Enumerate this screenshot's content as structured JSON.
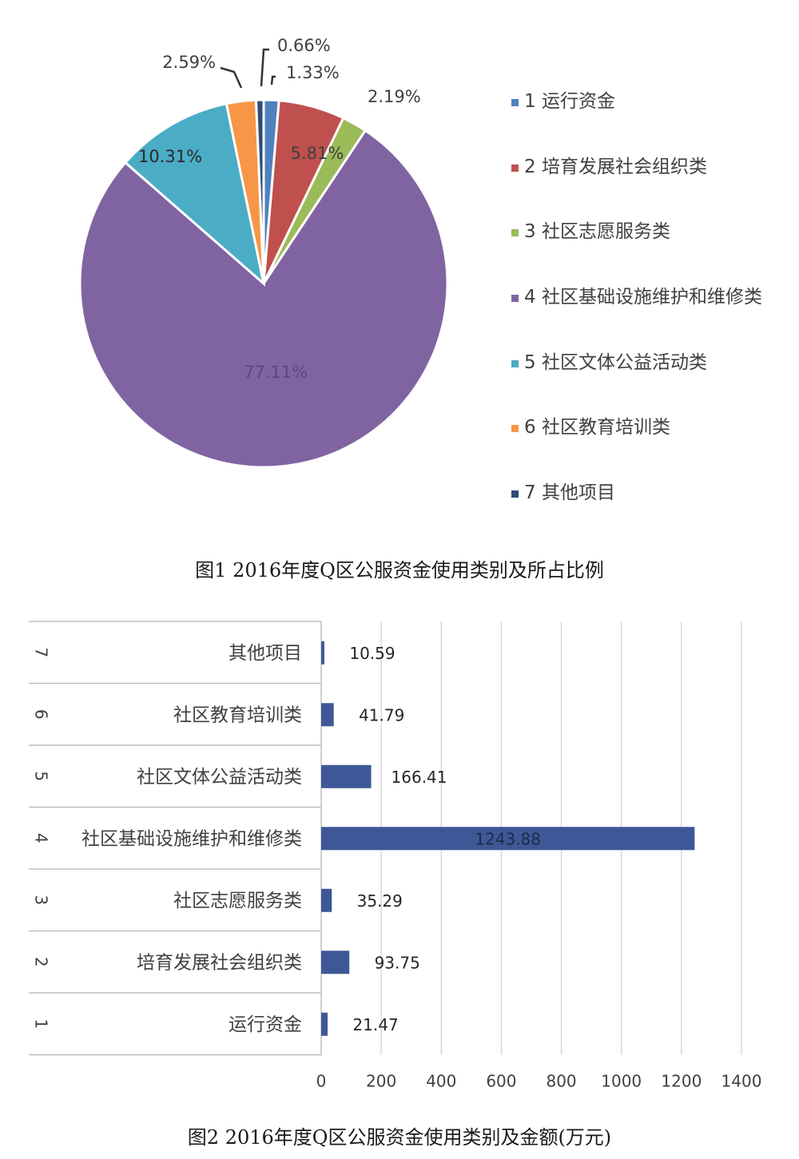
{
  "chart_data": [
    {
      "type": "pie",
      "title": "",
      "caption": "图1  2016年度Q区公服资金使用类别及所占比例",
      "legend_position": "right",
      "slices": [
        {
          "label": "1 运行资金",
          "value": 1.33,
          "value_label": "1.33%",
          "color": "#4f81bd"
        },
        {
          "label": "2 培育发展社会组织类",
          "value": 5.81,
          "value_label": "5.81%",
          "color": "#c0504d"
        },
        {
          "label": "3 社区志愿服务类",
          "value": 2.19,
          "value_label": "2.19%",
          "color": "#9bbb59"
        },
        {
          "label": "4 社区基础设施维护和维修类",
          "value": 77.11,
          "value_label": "77.11%",
          "color": "#8064a2"
        },
        {
          "label": "5 社区文体公益活动类",
          "value": 10.31,
          "value_label": "10.31%",
          "color": "#4bacc6"
        },
        {
          "label": "6 社区教育培训类",
          "value": 2.59,
          "value_label": "2.59%",
          "color": "#f79646"
        },
        {
          "label": "7 其他项目",
          "value": 0.66,
          "value_label": "0.66%",
          "color": "#2c4d75"
        }
      ]
    },
    {
      "type": "bar",
      "orientation": "horizontal",
      "title": "",
      "caption": "图2  2016年度Q区公服资金使用类别及金额(万元)",
      "unit": "万元",
      "xlim": [
        0,
        1400
      ],
      "xticks": [
        0,
        200,
        400,
        600,
        800,
        1000,
        1200,
        1400
      ],
      "grid": true,
      "bar_color": "#3e5897",
      "categories": [
        {
          "index": "1",
          "label": "运行资金",
          "value": 21.47,
          "value_label": "21.47"
        },
        {
          "index": "2",
          "label": "培育发展社会组织类",
          "value": 93.75,
          "value_label": "93.75"
        },
        {
          "index": "3",
          "label": "社区志愿服务类",
          "value": 35.29,
          "value_label": "35.29"
        },
        {
          "index": "4",
          "label": "社区基础设施维护和维修类",
          "value": 1243.88,
          "value_label": "1243.88"
        },
        {
          "index": "5",
          "label": "社区文体公益活动类",
          "value": 166.41,
          "value_label": "166.41"
        },
        {
          "index": "6",
          "label": "社区教育培训类",
          "value": 41.79,
          "value_label": "41.79"
        },
        {
          "index": "7",
          "label": "其他项目",
          "value": 10.59,
          "value_label": "10.59"
        }
      ]
    }
  ]
}
